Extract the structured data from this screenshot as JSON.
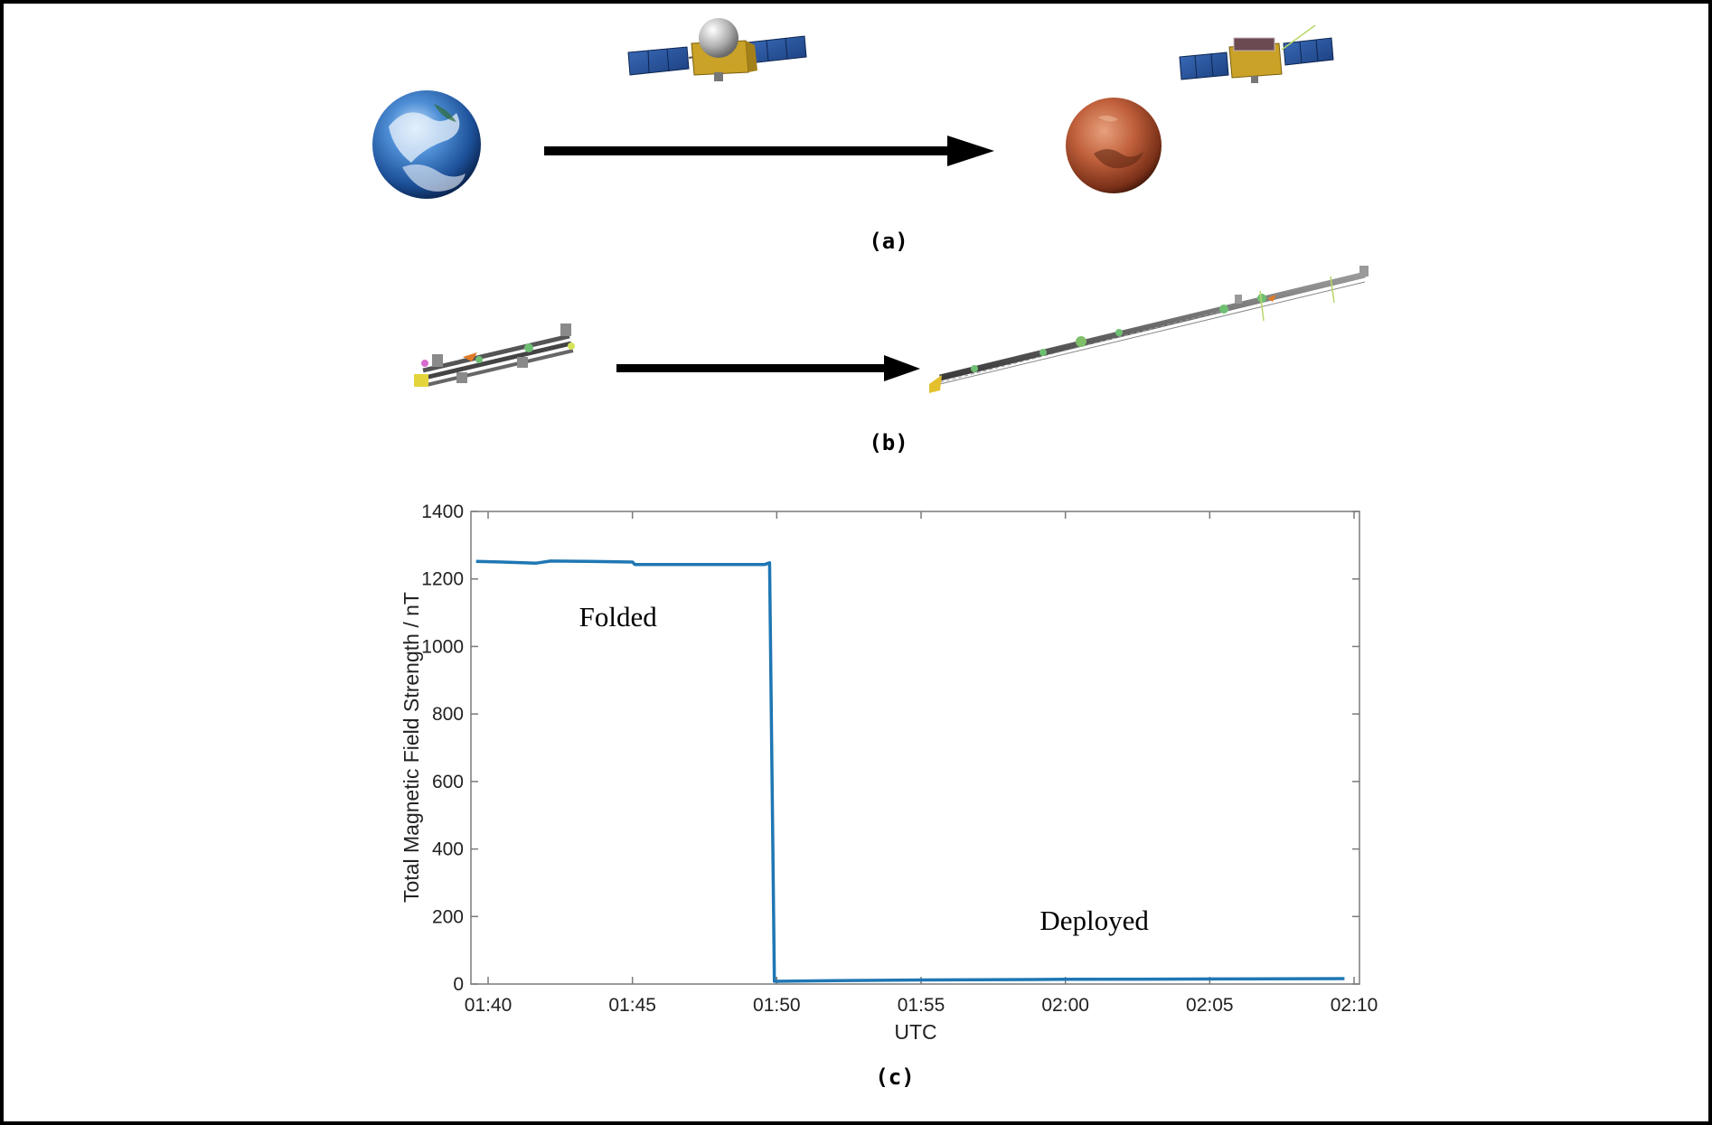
{
  "panels": {
    "a_label": "(a)",
    "b_label": "(b)",
    "c_label": "(c)"
  },
  "illustrations": {
    "earth": "earth-globe-image",
    "mars": "mars-globe-image",
    "orbiter_cruise": "orbiter-with-folded-boom",
    "orbiter_at_mars": "orbiter-with-deployed-boom",
    "boom_folded": "folded-magnetometer-boom",
    "boom_deployed": "deployed-magnetometer-boom",
    "arrow_color": "#000000"
  },
  "chart_data": {
    "type": "line",
    "xlabel": "UTC",
    "ylabel": "Total Magnetic Field Strength / nT",
    "x_ticks": [
      "01:40",
      "01:45",
      "01:50",
      "01:55",
      "02:00",
      "02:05",
      "02:10"
    ],
    "y_ticks": [
      "0",
      "200",
      "400",
      "600",
      "800",
      "1000",
      "1200",
      "1400"
    ],
    "xlim": [
      "01:40",
      "02:10"
    ],
    "ylim": [
      0,
      1400
    ],
    "grid": false,
    "annotations": [
      {
        "text": "Folded",
        "x": "01:44:30",
        "y": 1060
      },
      {
        "text": "Deployed",
        "x": "02:01",
        "y": 160
      }
    ],
    "series": [
      {
        "color": "#1f77b4",
        "points": [
          [
            "01:39:35",
            1252
          ],
          [
            "01:40:30",
            1250
          ],
          [
            "01:41:40",
            1247
          ],
          [
            "01:42:10",
            1253
          ],
          [
            "01:43:30",
            1252
          ],
          [
            "01:45:00",
            1250
          ],
          [
            "01:45:05",
            1243
          ],
          [
            "01:47:00",
            1243
          ],
          [
            "01:49:35",
            1243
          ],
          [
            "01:49:45",
            1248
          ],
          [
            "01:49:55",
            8
          ],
          [
            "01:52:00",
            10
          ],
          [
            "01:55:00",
            12
          ],
          [
            "02:00:00",
            14
          ],
          [
            "02:05:00",
            15
          ],
          [
            "02:09:40",
            16
          ]
        ]
      }
    ]
  }
}
